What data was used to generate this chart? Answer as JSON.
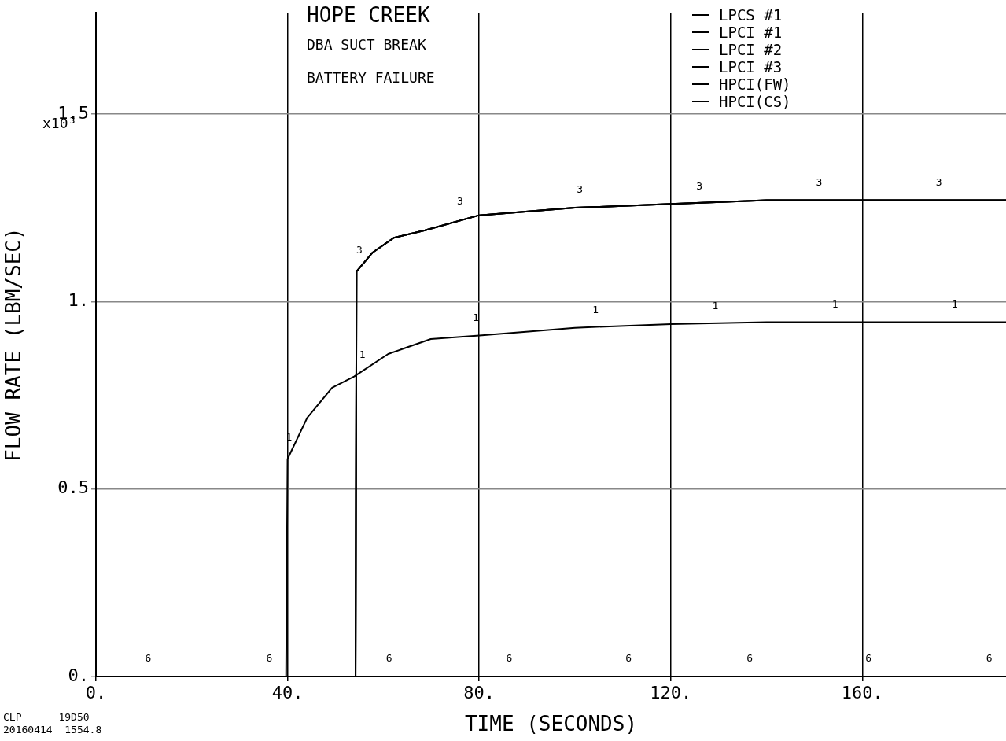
{
  "chart_data": {
    "type": "line",
    "title": "HOPE CREEK",
    "xlabel": "TIME (SECONDS)",
    "ylabel": "FLOW RATE (LBM/SEC)",
    "xlim": [
      0,
      190
    ],
    "ylim": [
      0,
      1.77
    ],
    "xticks": [
      {
        "value": 0,
        "label": "0."
      },
      {
        "value": 40,
        "label": "40."
      },
      {
        "value": 80,
        "label": "80."
      },
      {
        "value": 120,
        "label": "120."
      },
      {
        "value": 160,
        "label": "160."
      }
    ],
    "yticks": [
      {
        "value": 0,
        "label": "0."
      },
      {
        "value": 0.5,
        "label": "0.5"
      },
      {
        "value": 1,
        "label": "1."
      },
      {
        "value": 1.5,
        "label": "1.5"
      }
    ],
    "grid": true,
    "legend": "top right",
    "marker": "none",
    "line_style": "solid",
    "series": [
      {
        "name": "LPCS #1",
        "color": "#000000",
        "x": [
          0,
          39.7,
          40,
          44.1,
          49.3,
          53.9,
          61,
          69.9,
          80.6,
          100,
          120,
          140,
          190
        ],
        "values": [
          0,
          0,
          0.58,
          0.69,
          0.77,
          0.8,
          0.86,
          0.9,
          0.91,
          0.93,
          0.94,
          0.945,
          0.945
        ]
      },
      {
        "name": "LPCI #1",
        "color": "#000000",
        "x": [
          0,
          54.2,
          54.4,
          57.7,
          62.2,
          68.7,
          80,
          100,
          120,
          140,
          190
        ],
        "values": [
          0,
          0,
          1.08,
          1.13,
          1.17,
          1.19,
          1.23,
          1.25,
          1.26,
          1.27,
          1.27
        ]
      },
      {
        "name": "LPCI #2",
        "color": "#000000",
        "x": [
          0,
          54.2,
          54.4,
          57.7,
          62.2,
          68.7,
          80,
          100,
          120,
          140,
          190
        ],
        "values": [
          0,
          0,
          1.08,
          1.13,
          1.17,
          1.19,
          1.23,
          1.25,
          1.26,
          1.27,
          1.27
        ]
      },
      {
        "name": "LPCI #3",
        "color": "#000000",
        "x": [
          0,
          54.2,
          54.4,
          57.7,
          62.2,
          68.7,
          80,
          100,
          120,
          140,
          190
        ],
        "values": [
          0,
          0,
          1.08,
          1.13,
          1.17,
          1.19,
          1.23,
          1.25,
          1.26,
          1.27,
          1.27
        ]
      },
      {
        "name": "HPCI(FW)",
        "color": "#000000",
        "x": [
          0,
          190
        ],
        "values": [
          0,
          0
        ]
      },
      {
        "name": "HPCI(CS)",
        "color": "#000000",
        "x": [
          0,
          190
        ],
        "values": [
          0,
          0
        ]
      }
    ],
    "annotations": [
      "DBA SUCT BREAK",
      "BATTERY FAILURE",
      "x10³",
      "CLP      19D50",
      "20160414  1554.8",
      {
        "text": "1",
        "x": 40.3,
        "y": 0.59
      },
      {
        "text": "1",
        "x": 55.6,
        "y": 0.81
      },
      {
        "text": "1",
        "x": 79.3,
        "y": 0.91
      },
      {
        "text": "1",
        "x": 104.3,
        "y": 0.93
      },
      {
        "text": "1",
        "x": 129.3,
        "y": 0.94
      },
      {
        "text": "1",
        "x": 154.3,
        "y": 0.945
      },
      {
        "text": "1",
        "x": 179.3,
        "y": 0.945
      },
      {
        "text": "3",
        "x": 55,
        "y": 1.09
      },
      {
        "text": "3",
        "x": 76,
        "y": 1.22
      },
      {
        "text": "3",
        "x": 101,
        "y": 1.25
      },
      {
        "text": "3",
        "x": 126,
        "y": 1.26
      },
      {
        "text": "3",
        "x": 151,
        "y": 1.27
      },
      {
        "text": "3",
        "x": 176,
        "y": 1.27
      },
      {
        "text": "6",
        "x": 10.9,
        "y": 0
      },
      {
        "text": "6",
        "x": 36.2,
        "y": 0
      },
      {
        "text": "6",
        "x": 61.2,
        "y": 0
      },
      {
        "text": "6",
        "x": 86.3,
        "y": 0
      },
      {
        "text": "6",
        "x": 111.2,
        "y": 0
      },
      {
        "text": "6",
        "x": 136.5,
        "y": 0
      },
      {
        "text": "6",
        "x": 161.3,
        "y": 0
      },
      {
        "text": "6",
        "x": 186.5,
        "y": 0
      }
    ]
  }
}
